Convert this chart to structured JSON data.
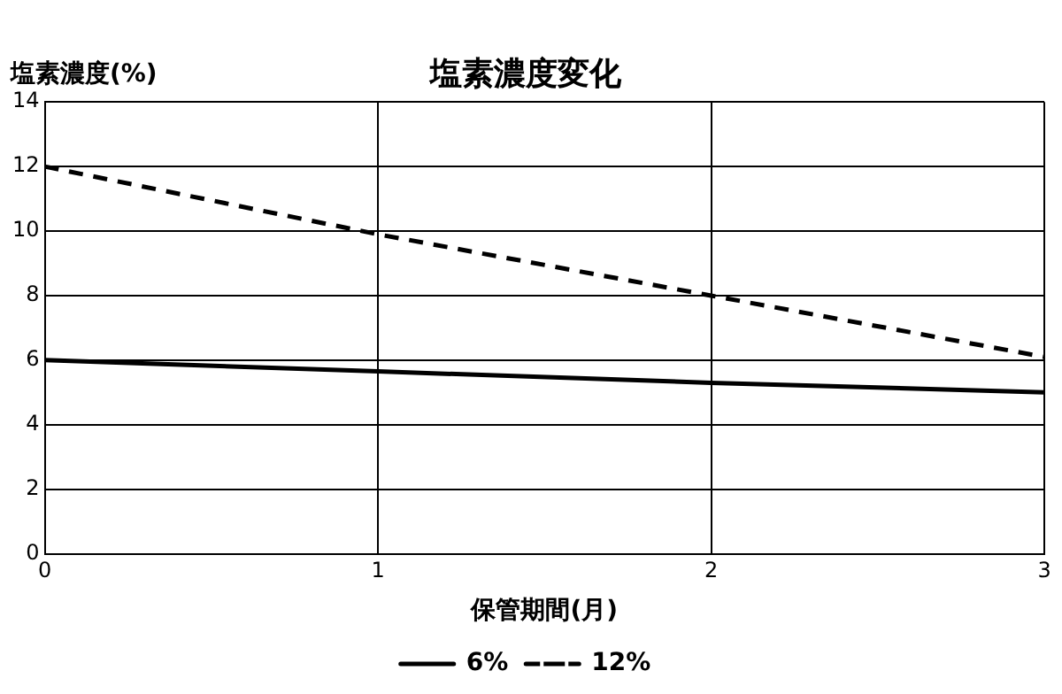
{
  "chart_data": {
    "type": "line",
    "title": "塩素濃度変化",
    "xlabel": "保管期間(月)",
    "ylabel": "塩素濃度(%)",
    "x": [
      0,
      1,
      2,
      3
    ],
    "xlim": [
      0,
      3
    ],
    "xticks": [
      0,
      1,
      2,
      3
    ],
    "ylim": [
      0,
      14
    ],
    "yticks": [
      0,
      2,
      4,
      6,
      8,
      10,
      12,
      14
    ],
    "series": [
      {
        "name": "6%",
        "color": "#000000",
        "values": [
          6.0,
          5.65,
          5.3,
          5.0
        ],
        "line_style": "solid"
      },
      {
        "name": "12%",
        "color": "#000000",
        "values": [
          12,
          9.9,
          8.0,
          6.1
        ],
        "line_style": "dashed"
      }
    ],
    "grid": true,
    "legend": "bottom",
    "marker": "none"
  }
}
